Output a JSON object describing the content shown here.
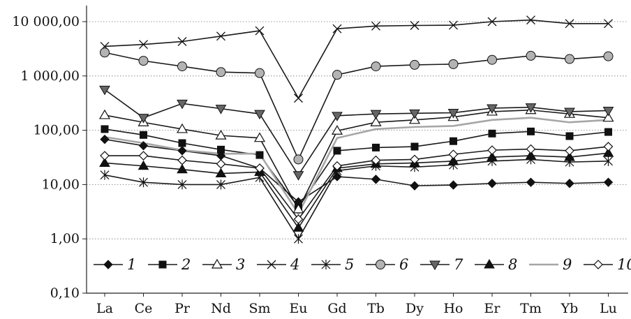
{
  "chart_data": {
    "type": "line",
    "title": "",
    "xlabel": "",
    "ylabel": "",
    "yscale": "log",
    "ylim": [
      0.1,
      10000
    ],
    "yticks": [
      0.1,
      1,
      10,
      100,
      1000,
      10000
    ],
    "ytick_labels": [
      "0,10",
      "1,00",
      "10,00",
      "100,00",
      "1 000,00",
      "10 000,00"
    ],
    "grid": "horizontal dotted",
    "legend_placement": "bottom",
    "categories": [
      "La",
      "Ce",
      "Pr",
      "Nd",
      "Sm",
      "Eu",
      "Gd",
      "Tb",
      "Dy",
      "Ho",
      "Er",
      "Tm",
      "Yb",
      "Lu"
    ],
    "series": [
      {
        "name": "1",
        "marker": "diamond-filled",
        "color": "#1a1a1a",
        "values": [
          68,
          52,
          42,
          34,
          20,
          4.8,
          14,
          12.5,
          9.5,
          9.8,
          10.5,
          11,
          10.5,
          11
        ]
      },
      {
        "name": "2",
        "marker": "square-filled",
        "color": "#1a1a1a",
        "values": [
          105,
          82,
          58,
          44,
          35,
          3.8,
          42,
          48,
          50,
          63,
          87,
          95,
          78,
          93
        ]
      },
      {
        "name": "3",
        "marker": "triangle-up-open",
        "color": "#1a1a1a",
        "values": [
          190,
          140,
          105,
          80,
          72,
          3.5,
          98,
          140,
          155,
          175,
          220,
          235,
          200,
          170
        ]
      },
      {
        "name": "4",
        "marker": "x",
        "color": "#1a1a1a",
        "values": [
          3500,
          3800,
          4300,
          5400,
          6800,
          390,
          7400,
          8300,
          8500,
          8600,
          10000,
          10700,
          9200,
          9200
        ]
      },
      {
        "name": "5",
        "marker": "asterisk",
        "color": "#1a1a1a",
        "values": [
          15,
          11,
          10,
          10,
          13.5,
          1,
          18,
          22,
          21,
          23,
          27,
          29,
          26,
          27
        ]
      },
      {
        "name": "6",
        "marker": "circle-filled-gray",
        "color": "#1a1a1a",
        "values": [
          2700,
          1900,
          1500,
          1180,
          1130,
          29,
          1050,
          1500,
          1600,
          1650,
          1980,
          2350,
          2050,
          2300
        ]
      },
      {
        "name": "7",
        "marker": "triangle-down-filled-gray",
        "color": "#1a1a1a",
        "values": [
          560,
          170,
          310,
          250,
          200,
          15,
          185,
          200,
          205,
          210,
          255,
          265,
          220,
          230
        ]
      },
      {
        "name": "8",
        "marker": "triangle-up-filled",
        "color": "#1a1a1a",
        "values": [
          25,
          22,
          19,
          16,
          17,
          1.6,
          20,
          24,
          25,
          27,
          32,
          34,
          32,
          38
        ]
      },
      {
        "name": "9",
        "marker": "none",
        "color": "#a6a6a6",
        "values": [
          75,
          58,
          43,
          37,
          37,
          2.9,
          72,
          105,
          115,
          120,
          155,
          170,
          140,
          155
        ]
      },
      {
        "name": "10",
        "marker": "diamond-open",
        "color": "#1a1a1a",
        "values": [
          34,
          34,
          28,
          24,
          20,
          2.3,
          22,
          28,
          29,
          36,
          43,
          45,
          42,
          50
        ]
      }
    ]
  }
}
